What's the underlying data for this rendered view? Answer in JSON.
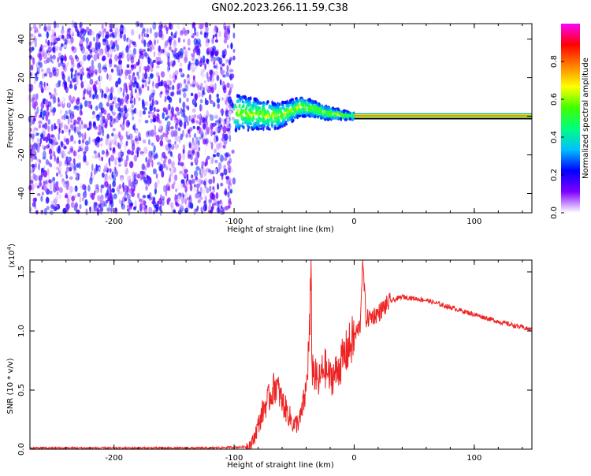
{
  "title": "GN02.2023.266.11.59.C38",
  "chart_data": [
    {
      "type": "heatmap",
      "xlabel": "Height of straight line (km)",
      "ylabel": "Frequency (Hz)",
      "xlim": [
        -270,
        148
      ],
      "ylim": [
        -50,
        48
      ],
      "x_ticks": [
        -200,
        -100,
        0,
        100
      ],
      "x_tick_labels": [
        "-200",
        "-100",
        "0",
        "100"
      ],
      "y_ticks": [
        -40,
        -20,
        0,
        20,
        40
      ],
      "y_tick_labels": [
        "-40",
        "-20",
        "0",
        "20",
        "40"
      ],
      "colorbar": {
        "label": "Normalized spectral amplitude",
        "range": [
          0,
          1
        ],
        "ticks": [
          0.0,
          0.2,
          0.4,
          0.6,
          0.8
        ],
        "tick_labels": [
          "0.0",
          "0.2",
          "0.4",
          "0.6",
          "0.8"
        ],
        "colors": [
          "#ffffff",
          "#8000ff",
          "#0000ff",
          "#00c0ff",
          "#00ff80",
          "#40ff00",
          "#ffff00",
          "#ff8000",
          "#ff0000",
          "#ff00ff"
        ]
      },
      "regions": [
        {
          "x": [
            -270,
            -100
          ],
          "description_values": {
            "freq_range": [
              -50,
              48
            ],
            "amplitude": [
              0.0,
              0.25
            ]
          }
        },
        {
          "x": [
            -100,
            0
          ],
          "center_freq_hz": [
            [
              -100,
              2
            ],
            [
              -80,
              1
            ],
            [
              -65,
              0
            ],
            [
              -55,
              2
            ],
            [
              -45,
              5
            ],
            [
              -35,
              4
            ],
            [
              -25,
              2
            ],
            [
              -15,
              1
            ],
            [
              0,
              0
            ]
          ],
          "amplitude": [
            0.2,
            0.7
          ]
        },
        {
          "x": [
            0,
            148
          ],
          "center_freq_hz": 0,
          "amplitude": 0.85
        }
      ],
      "grid": false
    },
    {
      "type": "line",
      "xlabel": "Height of straight line (km)",
      "ylabel": "SNR (10 * v/v)",
      "y_multiplier": "(x10^4)",
      "xlim": [
        -270,
        148
      ],
      "ylim": [
        0,
        1.6
      ],
      "x_ticks": [
        -200,
        -100,
        0,
        100
      ],
      "x_tick_labels": [
        "-200",
        "-100",
        "0",
        "100"
      ],
      "y_ticks": [
        0.0,
        0.5,
        1.0,
        1.5
      ],
      "y_tick_labels": [
        "0.0",
        "0.5",
        "1.0",
        "1.5"
      ],
      "series": [
        {
          "color": "#ee2222",
          "x": [
            -270,
            -200,
            -120,
            -90,
            -85,
            -80,
            -75,
            -70,
            -65,
            -60,
            -55,
            -50,
            -45,
            -40,
            -37,
            -36,
            -35,
            -30,
            -25,
            -20,
            -15,
            -10,
            -5,
            0,
            5,
            7,
            10,
            20,
            30,
            40,
            60,
            80,
            100,
            120,
            148
          ],
          "y": [
            0.01,
            0.01,
            0.01,
            0.02,
            0.05,
            0.2,
            0.35,
            0.45,
            0.55,
            0.4,
            0.3,
            0.2,
            0.25,
            0.5,
            1.0,
            1.45,
            0.7,
            0.55,
            0.7,
            0.6,
            0.65,
            0.75,
            0.85,
            0.95,
            1.05,
            1.6,
            1.1,
            1.15,
            1.25,
            1.29,
            1.26,
            1.2,
            1.14,
            1.08,
            1.01
          ]
        }
      ],
      "grid": false
    }
  ]
}
